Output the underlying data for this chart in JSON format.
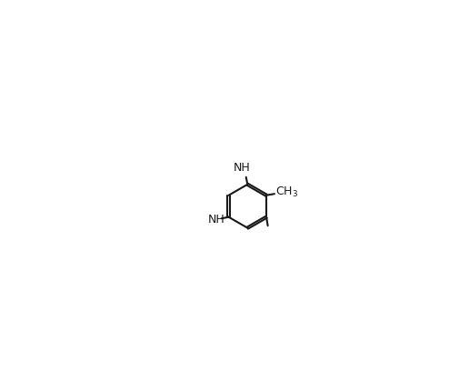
{
  "background_color": "#ffffff",
  "line_color": "#1a1a1a",
  "line_width": 1.5,
  "font_size": 9,
  "figsize": [
    4.94,
    4.3
  ],
  "dpi": 100
}
